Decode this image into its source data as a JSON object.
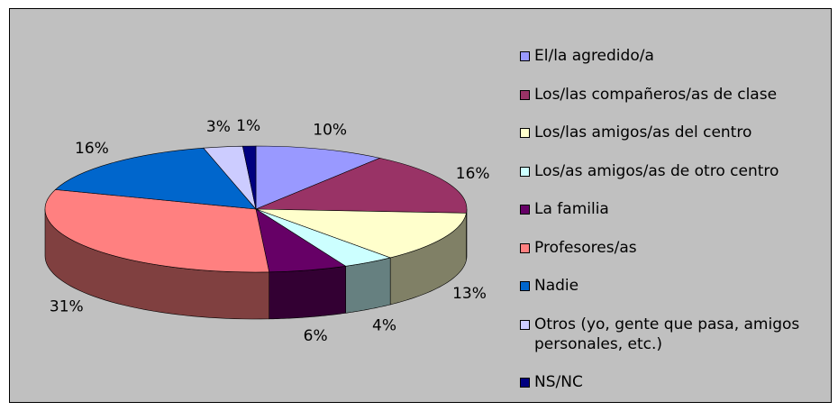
{
  "chart_data": {
    "type": "pie",
    "categories": [
      "El/la agredido/a",
      "Los/las compañeros/as de clase",
      "Los/las amigos/as del centro",
      "Los/as amigos/as de otro centro",
      "La familia",
      "Profesores/as",
      "Nadie",
      "Otros (yo, gente que pasa, amigos personales, etc.)",
      "NS/NC"
    ],
    "values": [
      10,
      16,
      13,
      4,
      6,
      31,
      16,
      3,
      1
    ],
    "value_labels": [
      "10%",
      "16%",
      "13%",
      "4%",
      "6%",
      "31%",
      "16%",
      "3%",
      "1%"
    ],
    "colors": [
      "#9999ff",
      "#993366",
      "#ffffcc",
      "#ccffff",
      "#660066",
      "#ff8080",
      "#0066cc",
      "#ccccff",
      "#000080"
    ],
    "legend": "right"
  }
}
